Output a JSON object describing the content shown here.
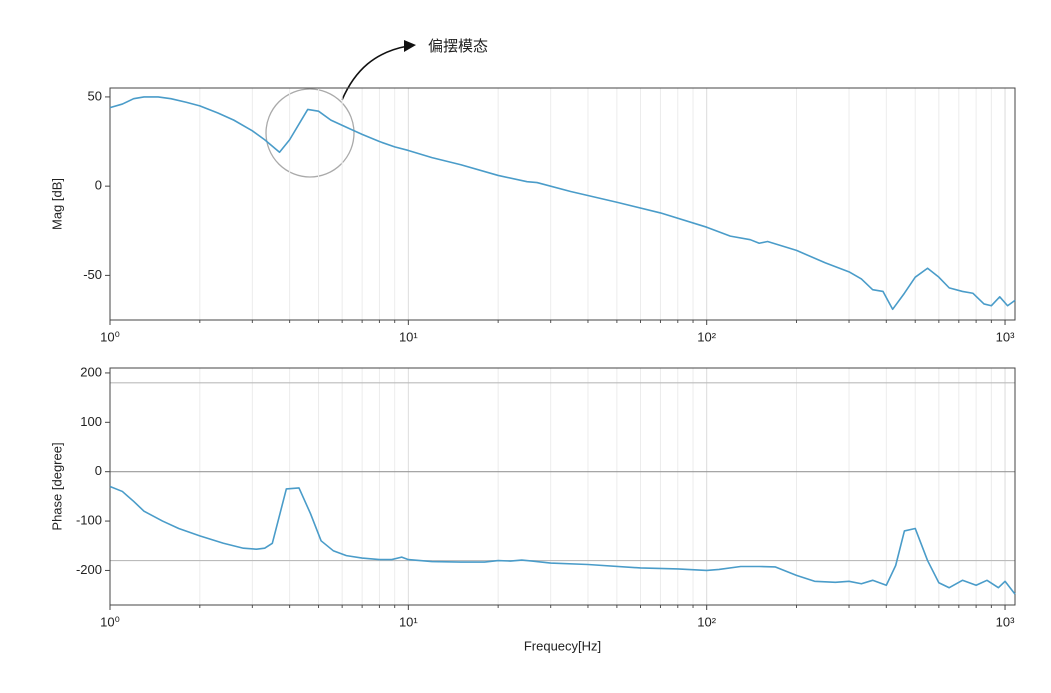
{
  "chart_data": [
    {
      "type": "line",
      "ylabel": "Mag [dB]",
      "log_x": true,
      "grid": true,
      "xlim": [
        1,
        1080
      ],
      "ylim": [
        -75,
        55
      ],
      "xticks": [
        {
          "value": 1,
          "label": "10⁰"
        },
        {
          "value": 10,
          "label": "10¹"
        },
        {
          "value": 100,
          "label": "10²"
        },
        {
          "value": 1000,
          "label": "10³"
        }
      ],
      "yticks": [
        -50,
        0,
        50
      ],
      "annotation": "偏摆模态",
      "x": [
        1,
        1.1,
        1.2,
        1.3,
        1.45,
        1.6,
        1.8,
        2.0,
        2.3,
        2.6,
        3.0,
        3.3,
        3.7,
        4.0,
        4.6,
        5.0,
        5.5,
        6.2,
        7.0,
        8.0,
        9.0,
        10,
        12,
        15,
        20,
        25,
        27,
        35,
        50,
        70,
        100,
        120,
        140,
        150,
        160,
        200,
        250,
        300,
        330,
        360,
        390,
        420,
        460,
        500,
        550,
        600,
        650,
        720,
        780,
        850,
        900,
        960,
        1020,
        1080
      ],
      "series": [
        {
          "color": "#4a9cc9",
          "values": [
            44,
            46,
            49,
            50,
            50,
            49,
            47,
            45,
            41,
            37,
            31,
            26,
            19,
            26,
            43,
            42,
            37,
            33,
            29,
            25,
            22,
            20,
            16,
            12,
            6,
            2.5,
            2,
            -3,
            -9,
            -15,
            -23,
            -28,
            -30,
            -32,
            -31,
            -36,
            -43,
            -48,
            -52,
            -58,
            -59,
            -69,
            -60,
            -51,
            -46,
            -51,
            -57,
            -59,
            -60,
            -66,
            -67,
            -62,
            -67,
            -64
          ]
        }
      ]
    },
    {
      "type": "line",
      "ylabel": "Phase [degree]",
      "xlabel": "Frequecy[Hz]",
      "log_x": true,
      "grid": true,
      "xlim": [
        1,
        1080
      ],
      "ylim": [
        -270,
        210
      ],
      "xticks": [
        {
          "value": 1,
          "label": "10⁰"
        },
        {
          "value": 10,
          "label": "10¹"
        },
        {
          "value": 100,
          "label": "10²"
        },
        {
          "value": 1000,
          "label": "10³"
        }
      ],
      "yticks": [
        -200,
        -100,
        0,
        100,
        200
      ],
      "reference_lines": [
        -180,
        0,
        180
      ],
      "x": [
        1,
        1.1,
        1.2,
        1.3,
        1.5,
        1.7,
        2.0,
        2.4,
        2.8,
        3.1,
        3.3,
        3.5,
        3.9,
        4.3,
        4.7,
        5.1,
        5.6,
        6.2,
        7,
        8,
        8.8,
        9.5,
        10,
        12,
        15,
        18,
        20,
        22,
        24,
        26,
        30,
        40,
        60,
        80,
        100,
        110,
        130,
        150,
        170,
        200,
        230,
        270,
        300,
        330,
        360,
        400,
        430,
        460,
        500,
        550,
        600,
        650,
        720,
        800,
        870,
        950,
        1000,
        1080
      ],
      "series": [
        {
          "color": "#4a9cc9",
          "values": [
            -30,
            -40,
            -60,
            -80,
            -100,
            -115,
            -130,
            -145,
            -155,
            -157,
            -155,
            -145,
            -35,
            -33,
            -85,
            -140,
            -160,
            -170,
            -175,
            -178,
            -178,
            -173,
            -178,
            -182,
            -183,
            -183,
            -180,
            -181,
            -179,
            -181,
            -185,
            -188,
            -195,
            -197,
            -200,
            -198,
            -192,
            -192,
            -193,
            -210,
            -222,
            -224,
            -222,
            -227,
            -220,
            -230,
            -190,
            -120,
            -115,
            -180,
            -225,
            -235,
            -220,
            -230,
            -220,
            -235,
            -222,
            -248
          ]
        }
      ]
    }
  ]
}
